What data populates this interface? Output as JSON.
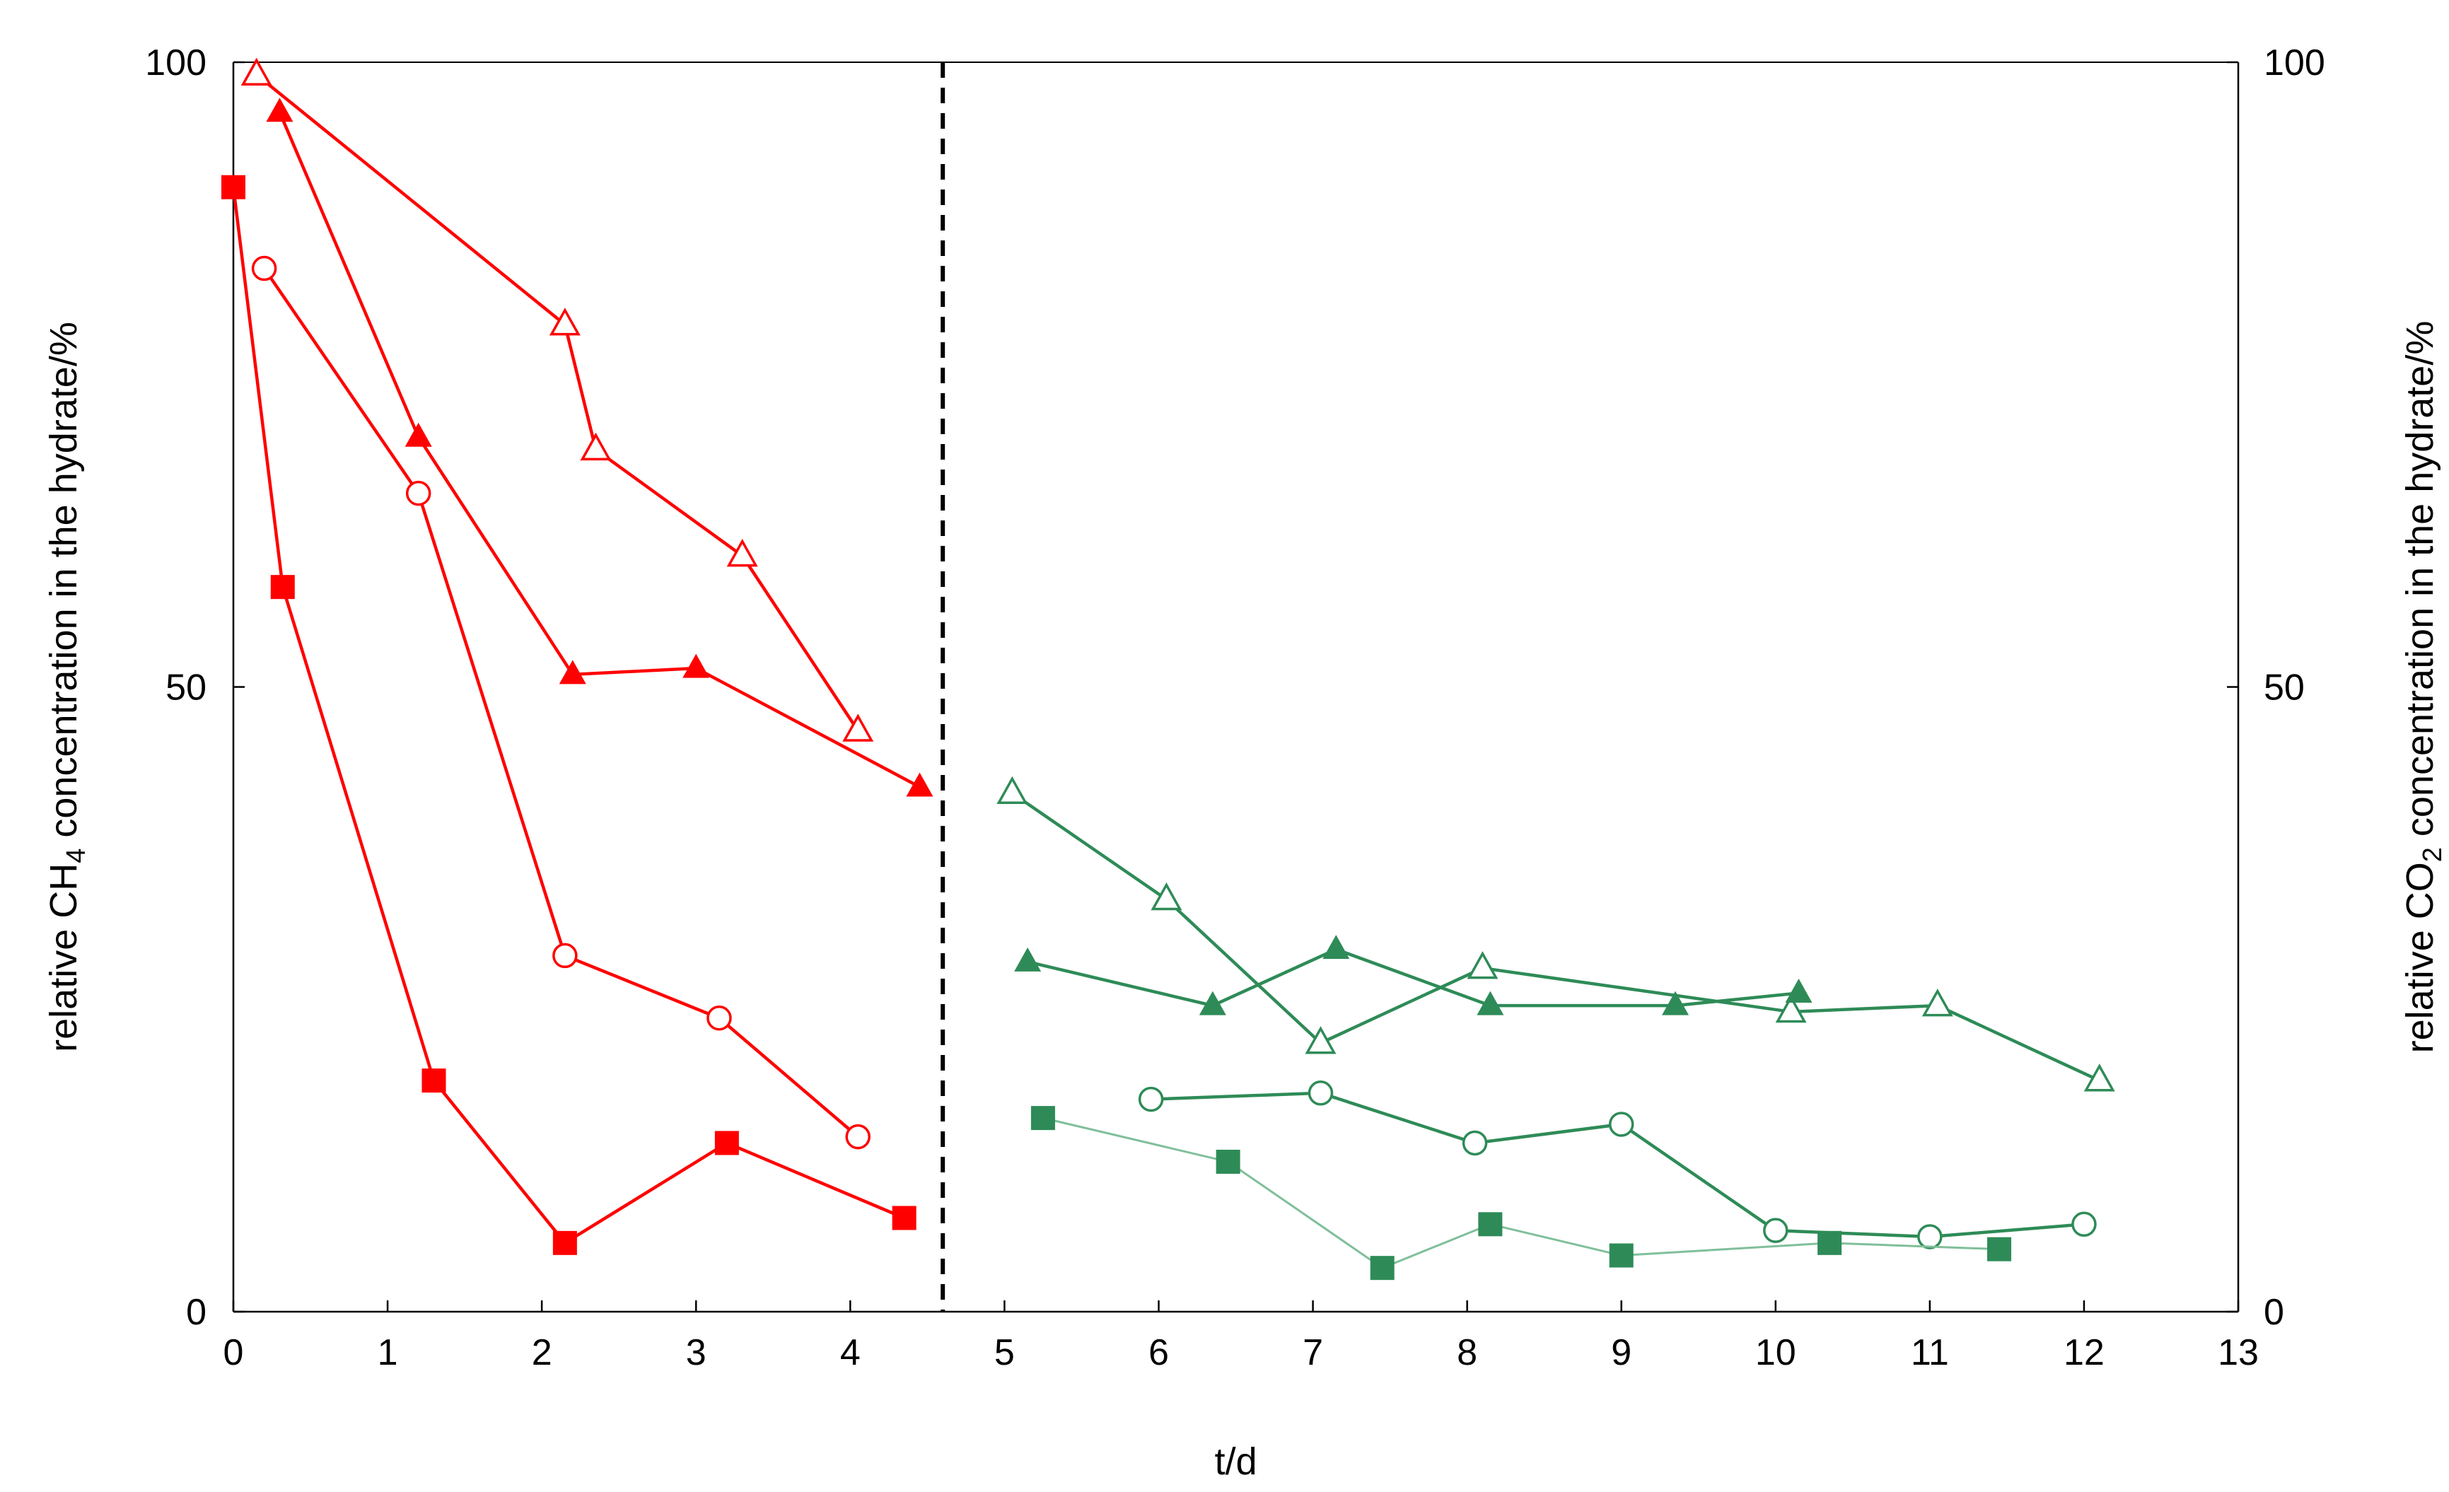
{
  "chart_data": {
    "type": "line",
    "xlabel": "t/d",
    "ylabel_left": {
      "prefix": "relative CH",
      "sub": "4",
      "suffix": " concentration in the hydrate/%"
    },
    "ylabel_right": {
      "prefix": "relative CO",
      "sub": "2",
      "suffix": " concentration in the hydrate/%"
    },
    "xlim": [
      0,
      13
    ],
    "ylim": [
      0,
      100
    ],
    "x_ticks": [
      "0",
      "1",
      "2",
      "3",
      "4",
      "5",
      "6",
      "7",
      "8",
      "9",
      "10",
      "11",
      "12",
      "13"
    ],
    "y_ticks": [
      "0",
      "50",
      "100"
    ],
    "divider_x": 4.6,
    "colors": {
      "ch4": "#ff0000",
      "co2": "#2e8b57",
      "co2_light": "#7fbf9a"
    },
    "series": [
      {
        "group": "ch4",
        "marker": "triangle-open",
        "points": [
          [
            0.15,
            99
          ],
          [
            2.15,
            79
          ],
          [
            2.35,
            69
          ],
          [
            3.3,
            60.5
          ],
          [
            4.05,
            46.5
          ]
        ]
      },
      {
        "group": "ch4",
        "marker": "triangle-filled",
        "points": [
          [
            0.3,
            96
          ],
          [
            1.2,
            70
          ],
          [
            2.2,
            51
          ],
          [
            3.0,
            51.5
          ],
          [
            4.45,
            42
          ]
        ]
      },
      {
        "group": "ch4",
        "marker": "circle-open",
        "points": [
          [
            0.2,
            83.5
          ],
          [
            1.2,
            65.5
          ],
          [
            2.15,
            28.5
          ],
          [
            3.15,
            23.5
          ],
          [
            4.05,
            14
          ]
        ]
      },
      {
        "group": "ch4",
        "marker": "square-filled",
        "points": [
          [
            0.0,
            90
          ],
          [
            0.32,
            58
          ],
          [
            1.3,
            18.5
          ],
          [
            2.15,
            5.5
          ],
          [
            3.2,
            13.5
          ],
          [
            4.35,
            7.5
          ]
        ]
      },
      {
        "group": "co2",
        "marker": "triangle-open",
        "points": [
          [
            5.05,
            41.5
          ],
          [
            6.05,
            33
          ],
          [
            7.05,
            21.5
          ],
          [
            8.1,
            27.5
          ],
          [
            10.1,
            24
          ],
          [
            11.05,
            24.5
          ],
          [
            12.1,
            18.5
          ]
        ]
      },
      {
        "group": "co2",
        "marker": "triangle-filled",
        "points": [
          [
            5.15,
            28
          ],
          [
            6.35,
            24.5
          ],
          [
            7.15,
            29
          ],
          [
            8.15,
            24.5
          ],
          [
            9.35,
            24.5
          ],
          [
            10.15,
            25.5
          ]
        ]
      },
      {
        "group": "co2",
        "marker": "circle-open",
        "points": [
          [
            5.95,
            17
          ],
          [
            7.05,
            17.5
          ],
          [
            8.05,
            13.5
          ],
          [
            9.0,
            15
          ],
          [
            10.0,
            6.5
          ],
          [
            11.0,
            6
          ],
          [
            12.0,
            7
          ]
        ]
      },
      {
        "group": "co2",
        "marker": "square-filled",
        "line": "light",
        "points": [
          [
            5.25,
            15.5
          ],
          [
            6.45,
            12
          ],
          [
            7.45,
            3.5
          ],
          [
            8.15,
            7
          ],
          [
            9.0,
            4.5
          ],
          [
            10.35,
            5.5
          ],
          [
            11.45,
            5
          ]
        ]
      }
    ]
  }
}
